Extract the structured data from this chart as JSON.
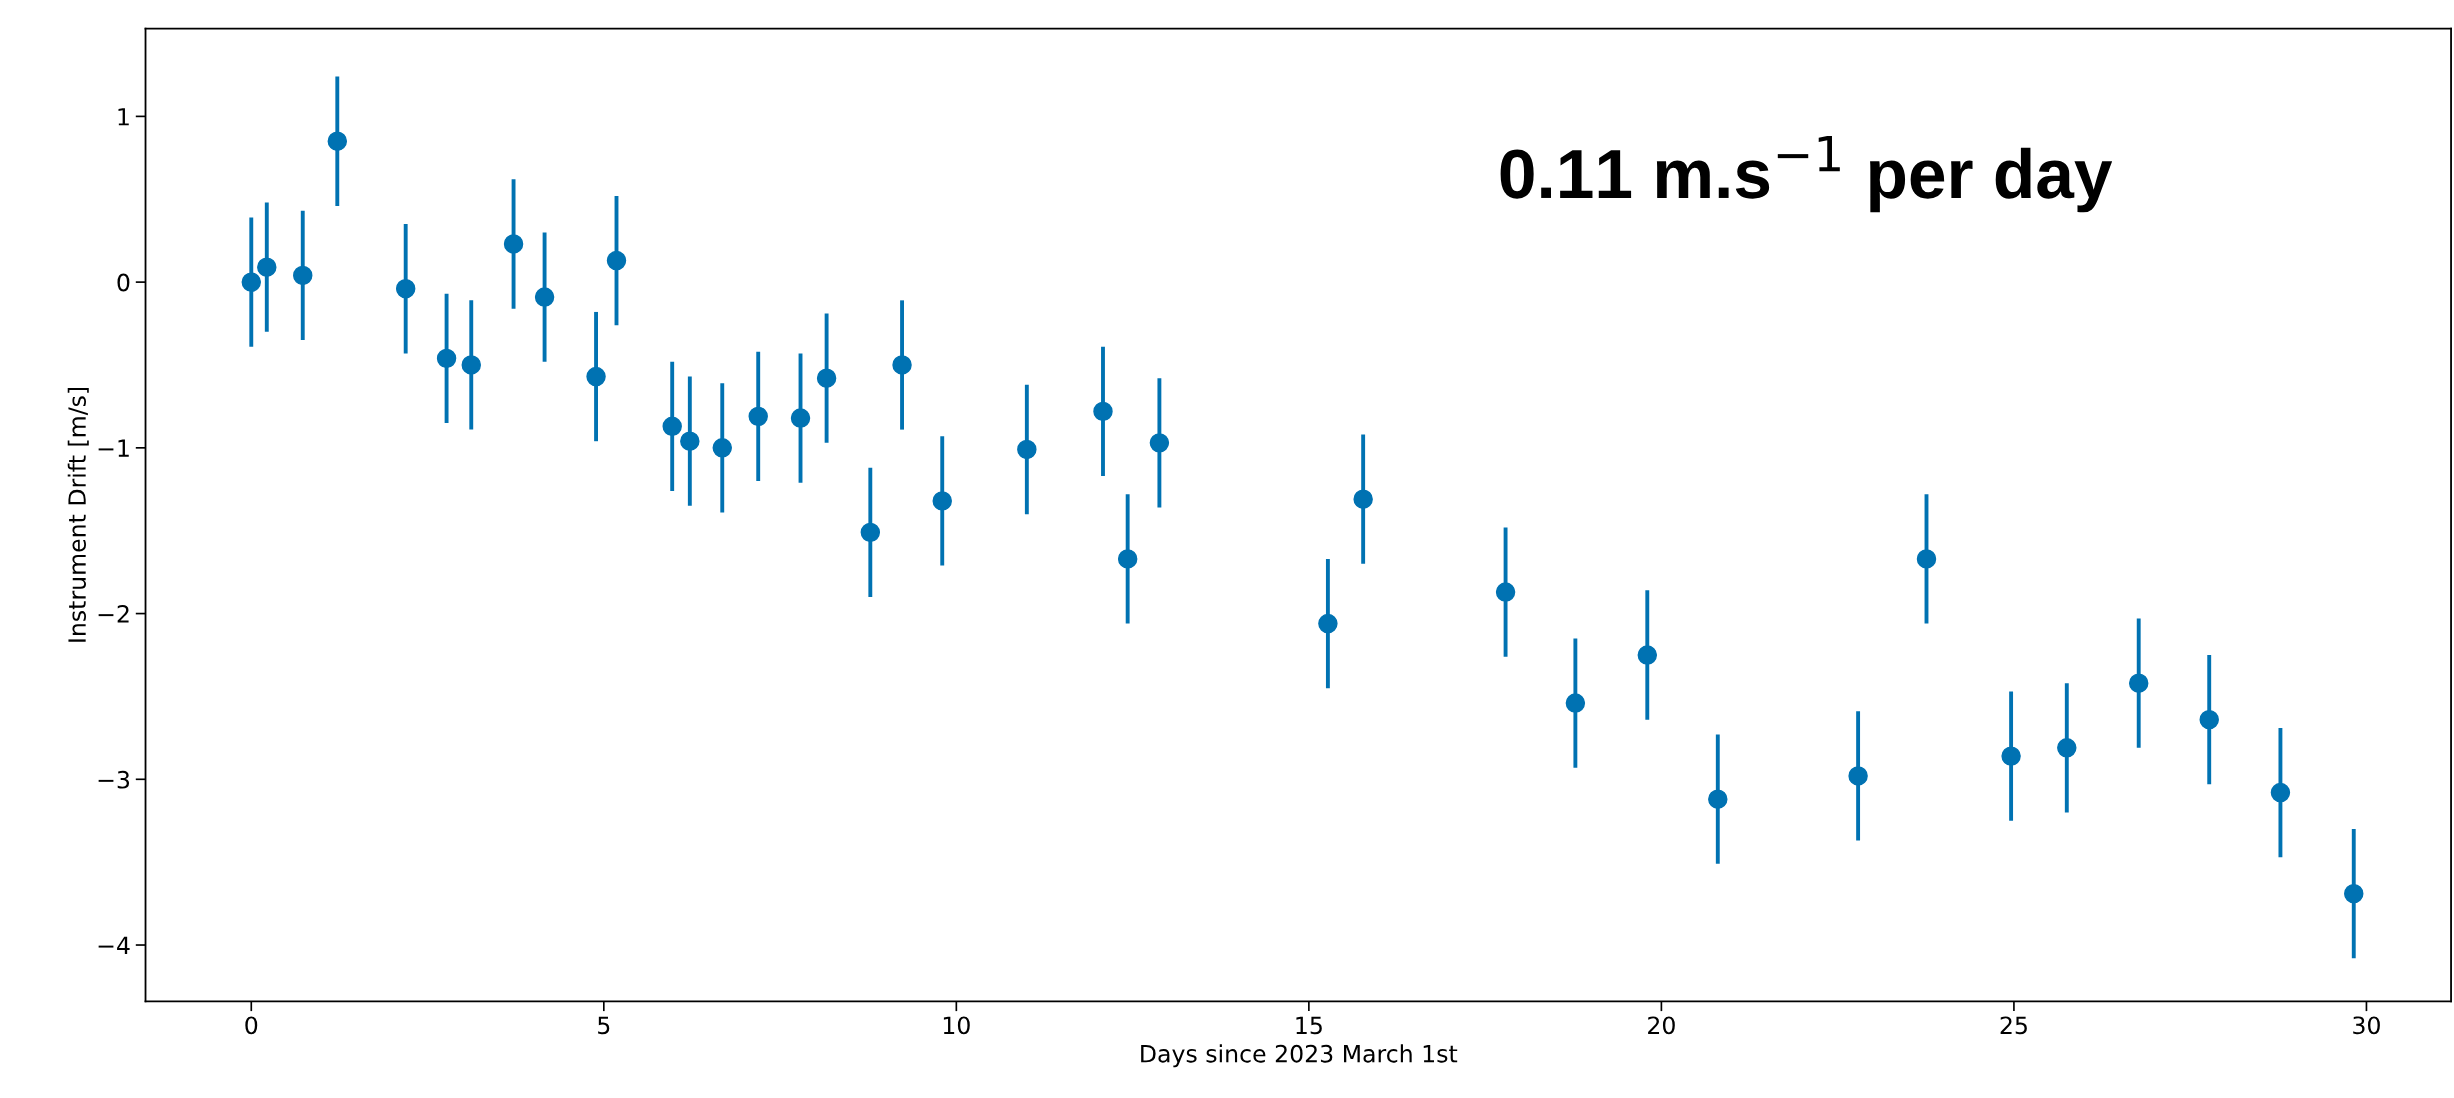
{
  "chart_data": {
    "type": "scatter",
    "xlabel": "Days since 2023 March 1st",
    "ylabel": "Instrument Drift [m/s]",
    "annotations": [
      "0.11 m.s$^{−1}$ per day"
    ],
    "x": [
      0,
      0.22,
      0.73,
      1.22,
      2.19,
      2.77,
      3.12,
      3.72,
      4.16,
      4.89,
      5.18,
      5.97,
      6.22,
      6.68,
      7.19,
      7.79,
      8.16,
      8.78,
      9.23,
      9.8,
      11.0,
      12.08,
      12.43,
      12.88,
      15.27,
      15.77,
      17.79,
      18.78,
      19.8,
      20.8,
      22.79,
      23.76,
      24.96,
      25.75,
      26.77,
      27.77,
      28.78,
      29.82
    ],
    "series": [
      {
        "color": "#0072b2",
        "values": [
          0,
          0.09,
          0.04,
          0.85,
          -0.04,
          -0.46,
          -0.5,
          0.23,
          -0.09,
          -0.57,
          0.13,
          -0.87,
          -0.96,
          -1.0,
          -0.81,
          -0.82,
          -0.58,
          -1.51,
          -0.5,
          -1.32,
          -1.01,
          -0.78,
          -1.67,
          -0.97,
          -2.06,
          -1.31,
          -1.87,
          -2.54,
          -2.25,
          -3.12,
          -2.98,
          -1.67,
          -2.86,
          -2.81,
          -2.42,
          -2.64,
          -3.08,
          -3.69
        ],
        "errors": [
          0.39,
          0.39,
          0.39,
          0.39,
          0.39,
          0.39,
          0.39,
          0.39,
          0.39,
          0.39,
          0.39,
          0.39,
          0.39,
          0.39,
          0.39,
          0.39,
          0.39,
          0.39,
          0.39,
          0.39,
          0.39,
          0.39,
          0.39,
          0.39,
          0.39,
          0.39,
          0.39,
          0.39,
          0.39,
          0.39,
          0.39,
          0.39,
          0.39,
          0.39,
          0.39,
          0.39,
          0.39,
          0.39
        ]
      }
    ],
    "marker": "circle",
    "grid": false,
    "xlim": [
      -1.5,
      31.2
    ],
    "xticks": [
      0,
      5,
      10,
      15,
      20,
      25,
      30
    ],
    "ylim": [
      -4.34,
      1.53
    ],
    "yticks": [
      {
        "value": -4,
        "label": "−4"
      },
      {
        "value": -3,
        "label": "−3"
      },
      {
        "value": -2,
        "label": "−2"
      },
      {
        "value": -1,
        "label": "−1"
      },
      0,
      1
    ]
  }
}
